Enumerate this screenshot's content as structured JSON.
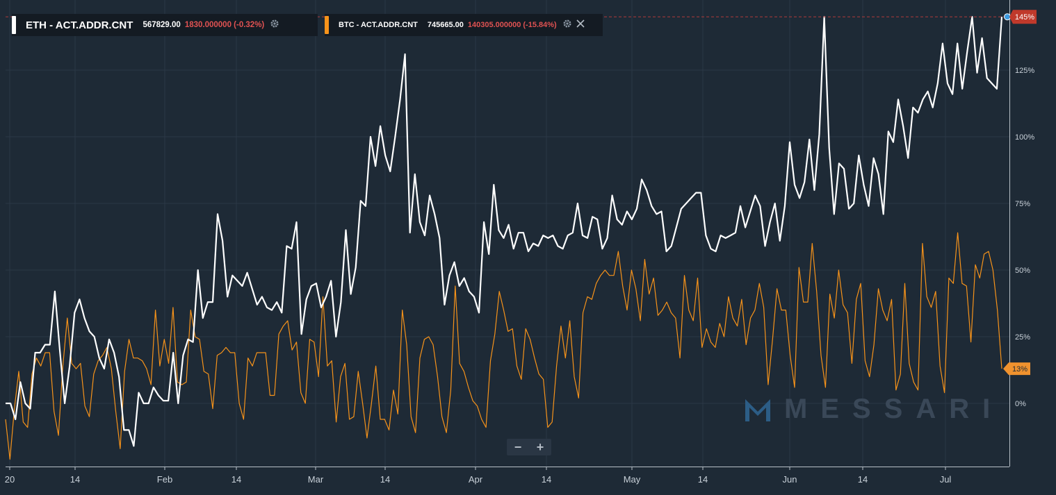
{
  "watermark": "MESSARI",
  "legend": [
    {
      "title": "ETH - ACT.ADDR.CNT",
      "value": "567829.00",
      "change": "1830.000000 (-0.32%)",
      "color": "#ffffff",
      "icons": [
        "gear-icon"
      ]
    },
    {
      "title": "BTC - ACT.ADDR.CNT",
      "value": "745665.00",
      "change": "140305.000000 (-15.84%)",
      "color": "#f7931a",
      "icons": [
        "gear-icon",
        "close-icon"
      ]
    }
  ],
  "zoom": {
    "minus": "−",
    "plus": "+"
  },
  "colors": {
    "background": "#1e2a36",
    "grid": "#2b3846",
    "eth": "#ffffff",
    "btc": "#f7931a",
    "last_eth": "#c0392b",
    "last_btc": "#f0922e"
  },
  "chart_data": {
    "type": "line",
    "x_labels": [
      "20",
      "14",
      "Feb",
      "14",
      "Mar",
      "14",
      "Apr",
      "14",
      "May",
      "14",
      "Jun",
      "14",
      "Jul"
    ],
    "y_ticks": [
      "0%",
      "25%",
      "50%",
      "75%",
      "100%",
      "125%"
    ],
    "ylim": [
      -23,
      147
    ],
    "last_values": {
      "eth": "145%",
      "btc": "13%"
    },
    "grid": true,
    "series": [
      {
        "name": "ETH - ACT.ADDR.CNT",
        "color": "#ffffff",
        "values": [
          0,
          0,
          -6,
          8,
          0,
          -2,
          19,
          19,
          22,
          22,
          42,
          20,
          0,
          14,
          34,
          39,
          32,
          27,
          25,
          17,
          13,
          24,
          19,
          10,
          -10,
          -10,
          -16,
          4,
          0,
          0,
          6,
          3,
          1,
          1,
          19,
          0,
          18,
          24,
          23,
          50,
          32,
          38,
          38,
          71,
          61,
          40,
          48,
          46,
          44,
          49,
          43,
          37,
          40,
          36,
          35,
          38,
          34,
          59,
          58,
          68,
          26,
          39,
          44,
          45,
          36,
          40,
          46,
          25,
          38,
          65,
          41,
          51,
          76,
          74,
          100,
          89,
          104,
          93,
          87,
          100,
          114,
          131,
          64,
          86,
          68,
          63,
          78,
          71,
          62,
          37,
          48,
          53,
          44,
          47,
          42,
          40,
          34,
          68,
          56,
          82,
          65,
          62,
          67,
          58,
          64,
          64,
          57,
          60,
          59,
          63,
          62,
          63,
          59,
          58,
          63,
          64,
          75,
          63,
          62,
          70,
          69,
          58,
          62,
          78,
          69,
          67,
          72,
          69,
          73,
          84,
          80,
          74,
          71,
          72,
          57,
          59,
          66,
          73,
          75,
          77,
          79,
          79,
          63,
          58,
          57,
          63,
          62,
          63,
          64,
          74,
          66,
          72,
          78,
          74,
          59,
          68,
          75,
          61,
          74,
          98,
          82,
          77,
          83,
          99,
          80,
          101,
          145,
          96,
          71,
          90,
          88,
          73,
          75,
          93,
          82,
          74,
          92,
          86,
          71,
          102,
          98,
          114,
          104,
          92,
          111,
          109,
          114,
          117,
          111,
          120,
          135,
          120,
          116,
          135,
          118,
          132,
          145,
          124,
          137,
          122,
          120,
          118,
          145
        ]
      },
      {
        "name": "BTC - ACT.ADDR.CNT",
        "color": "#f7931a",
        "values": [
          -6,
          -21,
          -2,
          12,
          -7,
          -9,
          11,
          17,
          14,
          19,
          19,
          -3,
          -12,
          14,
          32,
          15,
          13,
          15,
          -1,
          -5,
          11,
          16,
          18,
          21,
          13,
          -3,
          -17,
          12,
          24,
          17,
          17,
          16,
          13,
          7,
          35,
          14,
          24,
          15,
          36,
          8,
          7,
          8,
          35,
          25,
          24,
          12,
          11,
          -2,
          18,
          19,
          21,
          19,
          19,
          0,
          -6,
          17,
          14,
          19,
          19,
          19,
          3,
          3,
          26,
          29,
          31,
          20,
          23,
          4,
          0,
          24,
          23,
          10,
          40,
          14,
          16,
          -7,
          10,
          15,
          -6,
          -5,
          12,
          0,
          -13,
          0,
          14,
          -6,
          -6,
          -10,
          5,
          -4,
          35,
          22,
          -5,
          -11,
          17,
          24,
          25,
          22,
          10,
          -5,
          -11,
          5,
          44,
          15,
          12,
          6,
          1,
          -1,
          -6,
          -9,
          16,
          26,
          42,
          35,
          27,
          28,
          14,
          9,
          28,
          24,
          17,
          11,
          9,
          -9,
          -7,
          14,
          29,
          17,
          31,
          10,
          2,
          34,
          40,
          39,
          45,
          48,
          50,
          48,
          48,
          57,
          44,
          35,
          50,
          43,
          31,
          54,
          41,
          47,
          33,
          35,
          38,
          34,
          32,
          17,
          48,
          35,
          31,
          47,
          21,
          28,
          23,
          21,
          30,
          25,
          40,
          32,
          29,
          39,
          22,
          32,
          35,
          45,
          36,
          7,
          24,
          43,
          35,
          35,
          18,
          6,
          51,
          38,
          38,
          60,
          42,
          18,
          6,
          41,
          32,
          50,
          37,
          34,
          15,
          39,
          45,
          16,
          10,
          22,
          43,
          35,
          31,
          39,
          5,
          11,
          45,
          15,
          8,
          5,
          60,
          40,
          36,
          42,
          14,
          4,
          47,
          45,
          64,
          45,
          44,
          23,
          52,
          47,
          56,
          57,
          50,
          35,
          13
        ]
      }
    ]
  }
}
